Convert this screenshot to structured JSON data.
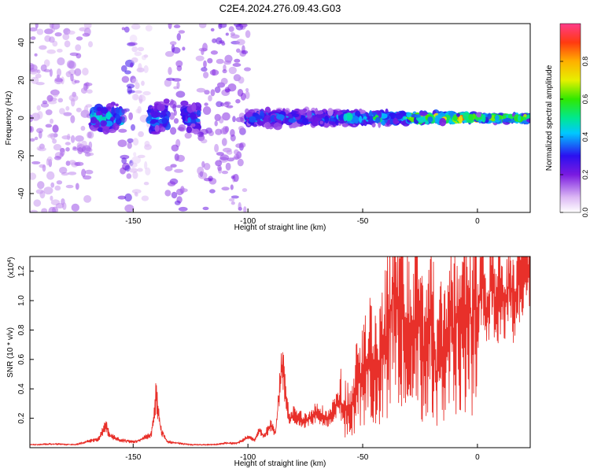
{
  "chart_data": [
    {
      "type": "heatmap",
      "title": "C2E4.2024.276.09.43.G03",
      "xlabel": "Height of straight line (km)",
      "ylabel": "Frequency (Hz)",
      "xlim": [
        -195,
        23
      ],
      "ylim": [
        -50,
        50
      ],
      "x_ticks": [
        -150,
        -100,
        -50,
        0
      ],
      "y_ticks": [
        -40,
        -20,
        0,
        20,
        40
      ],
      "colorbar": {
        "label": "Normalized spectral amplitude",
        "range": [
          0.0,
          1.0
        ],
        "ticks": [
          0.0,
          0.2,
          0.4,
          0.6,
          0.8
        ],
        "tick_labels": [
          "0.0",
          "0.2",
          "0.4",
          "0.6",
          "0.8"
        ]
      },
      "segments": [
        {
          "x_range": [
            -195,
            -168
          ],
          "amplitude": 0.15,
          "spread": 50
        },
        {
          "x_range": [
            -168,
            -155
          ],
          "amplitude": 0.45,
          "spread": 10
        },
        {
          "x_range": [
            -155,
            -150
          ],
          "amplitude": 0.25,
          "spread": 50
        },
        {
          "x_range": [
            -150,
            -143
          ],
          "amplitude": 0.08,
          "spread": 50
        },
        {
          "x_range": [
            -143,
            -135
          ],
          "amplitude": 0.4,
          "spread": 12
        },
        {
          "x_range": [
            -135,
            -128
          ],
          "amplitude": 0.2,
          "spread": 50
        },
        {
          "x_range": [
            -128,
            -121
          ],
          "amplitude": 0.35,
          "spread": 12
        },
        {
          "x_range": [
            -121,
            -100
          ],
          "amplitude": 0.2,
          "spread": 50
        },
        {
          "x_range": [
            -100,
            -60
          ],
          "amplitude": 0.4,
          "spread": 5
        },
        {
          "x_range": [
            -60,
            -30
          ],
          "amplitude": 0.5,
          "spread": 4
        },
        {
          "x_range": [
            -30,
            -10
          ],
          "amplitude": 0.75,
          "spread": 3
        },
        {
          "x_range": [
            -10,
            0
          ],
          "amplitude": 0.9,
          "spread": 2
        },
        {
          "x_range": [
            0,
            23
          ],
          "amplitude": 0.65,
          "spread": 2
        }
      ]
    },
    {
      "type": "line",
      "xlabel": "Height of straight line (km)",
      "ylabel": "SNR (10 * v/v)",
      "y_multiplier_label": "(x10",
      "y_multiplier_exp": "4",
      "y_multiplier_close": ")",
      "xlim": [
        -195,
        23
      ],
      "ylim": [
        0,
        1.3
      ],
      "x_ticks": [
        -150,
        -100,
        -50,
        0
      ],
      "y_ticks": [
        0.2,
        0.4,
        0.6,
        0.8,
        1.0,
        1.2
      ],
      "y_tick_labels": [
        "0.2",
        "0.4",
        "0.6",
        "0.8",
        "1.0",
        "1.2"
      ],
      "color": "#e8302a",
      "series": [
        {
          "x": [
            -195,
            -185,
            -175,
            -168,
            -165,
            -162,
            -160,
            -157,
            -155,
            -150,
            -147,
            -145,
            -142,
            -140,
            -138,
            -135,
            -130,
            -125,
            -120,
            -115,
            -110,
            -105,
            -100,
            -97,
            -95,
            -93,
            -90,
            -88,
            -85,
            -82,
            -80,
            -75,
            -70,
            -65,
            -60,
            -57,
            -55,
            -52,
            -50,
            -47,
            -45,
            -42,
            -40,
            -38,
            -36,
            -34,
            -33,
            -32,
            -30,
            -28,
            -26,
            -24,
            -22,
            -20,
            -18,
            -16,
            -14,
            -12,
            -10,
            -8,
            -6,
            -4,
            -2,
            -1,
            0,
            2,
            4,
            6,
            8,
            10,
            12,
            14,
            16,
            18,
            20,
            22,
            23
          ],
          "values": [
            0.02,
            0.025,
            0.02,
            0.05,
            0.06,
            0.15,
            0.08,
            0.06,
            0.05,
            0.04,
            0.05,
            0.07,
            0.09,
            0.36,
            0.12,
            0.04,
            0.03,
            0.02,
            0.02,
            0.02,
            0.03,
            0.03,
            0.07,
            0.05,
            0.12,
            0.08,
            0.15,
            0.1,
            0.58,
            0.18,
            0.22,
            0.18,
            0.24,
            0.2,
            0.32,
            0.26,
            0.3,
            0.45,
            0.48,
            0.62,
            0.5,
            0.6,
            0.7,
            0.95,
            1.1,
            0.8,
            1.08,
            0.7,
            0.85,
            0.7,
            0.92,
            0.65,
            0.7,
            0.88,
            0.5,
            0.72,
            0.6,
            0.88,
            0.75,
            0.95,
            0.82,
            0.99,
            0.78,
            1.3,
            0.88,
            1.2,
            0.85,
            1.18,
            0.95,
            1.05,
            0.98,
            1.12,
            1.0,
            1.18,
            1.12,
            1.2,
            1.25
          ]
        }
      ]
    }
  ]
}
